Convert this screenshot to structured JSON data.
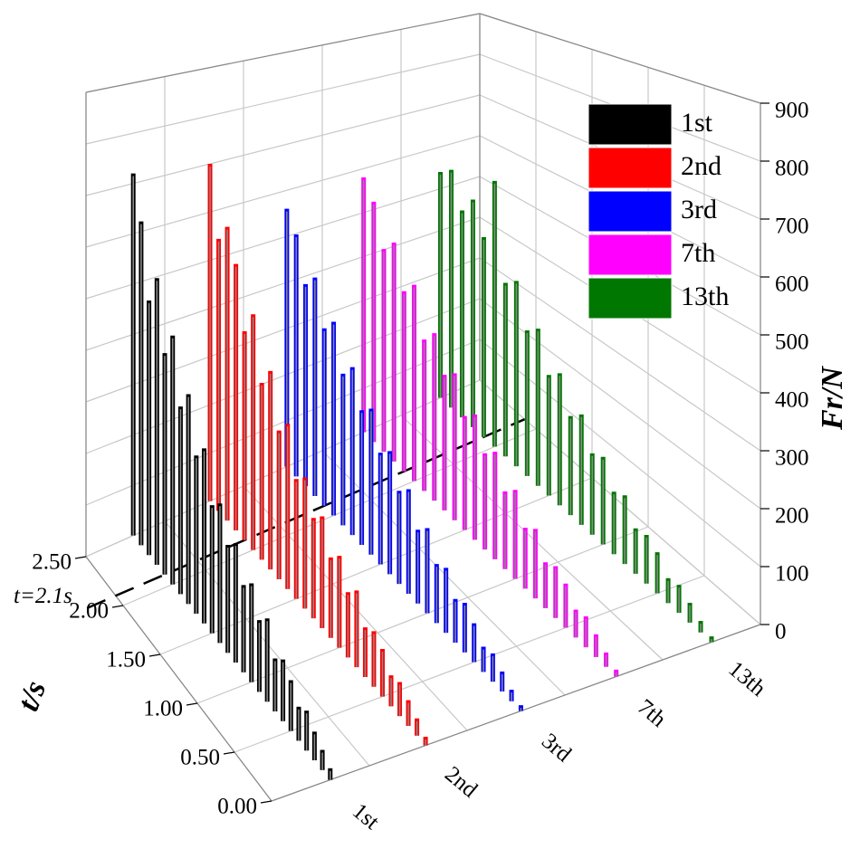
{
  "chart_data": {
    "type": "waterfall-3d",
    "x": [
      0,
      0.1,
      0.2,
      0.3,
      0.4,
      0.5,
      0.6,
      0.7,
      0.8,
      0.9,
      1.0,
      1.1,
      1.2,
      1.3,
      1.4,
      1.5,
      1.6,
      1.7,
      1.8,
      1.9,
      2.0,
      2.1,
      2.2,
      2.3,
      2.4,
      2.5
    ],
    "categories": [
      "1st",
      "2nd",
      "3rd",
      "7th",
      "13th"
    ],
    "series": [
      {
        "name": "1st",
        "color": "#000000",
        "values": [
          20,
          35,
          50,
          70,
          60,
          90,
          110,
          95,
          150,
          130,
          180,
          160,
          220,
          200,
          260,
          240,
          330,
          300,
          400,
          360,
          480,
          430,
          560,
          500,
          640,
          720
        ]
      },
      {
        "name": "2nd",
        "color": "#ff0000",
        "values": [
          15,
          30,
          45,
          60,
          55,
          85,
          100,
          90,
          140,
          120,
          170,
          150,
          210,
          190,
          250,
          230,
          320,
          290,
          390,
          350,
          470,
          420,
          540,
          600,
          560,
          700
        ]
      },
      {
        "name": "3rd",
        "color": "#0000ff",
        "values": [
          10,
          20,
          35,
          50,
          45,
          70,
          90,
          80,
          120,
          110,
          160,
          140,
          200,
          180,
          240,
          220,
          290,
          270,
          340,
          310,
          400,
          370,
          460,
          430,
          520,
          560
        ]
      },
      {
        "name": "7th",
        "color": "#ff00ff",
        "values": [
          12,
          25,
          40,
          55,
          50,
          80,
          95,
          85,
          130,
          115,
          170,
          150,
          210,
          190,
          250,
          230,
          300,
          280,
          350,
          320,
          420,
          390,
          480,
          450,
          540,
          580
        ]
      },
      {
        "name": "13th",
        "color": "#007700",
        "values": [
          10,
          20,
          35,
          50,
          45,
          75,
          90,
          85,
          130,
          120,
          170,
          160,
          220,
          200,
          270,
          250,
          330,
          310,
          400,
          380,
          590,
          450,
          520,
          480,
          560,
          540
        ]
      }
    ],
    "xlabel": "t/s",
    "zlabel": "Fr/N",
    "xlim": [
      0,
      2.5
    ],
    "xticks": [
      {
        "value": 0,
        "label": "0.00"
      },
      {
        "value": 0.5,
        "label": "0.50"
      },
      {
        "value": 1.0,
        "label": "1.00"
      },
      {
        "value": 1.5,
        "label": "1.50"
      },
      {
        "value": 2.0,
        "label": "2.00"
      },
      {
        "value": 2.5,
        "label": "2.50"
      }
    ],
    "zlim": [
      0,
      900
    ],
    "zticks": [
      0,
      100,
      200,
      300,
      400,
      500,
      600,
      700,
      800,
      900
    ],
    "annotation": {
      "value": 2.1,
      "label": "t=2.1s"
    },
    "grid": true,
    "legend": "top-right"
  }
}
